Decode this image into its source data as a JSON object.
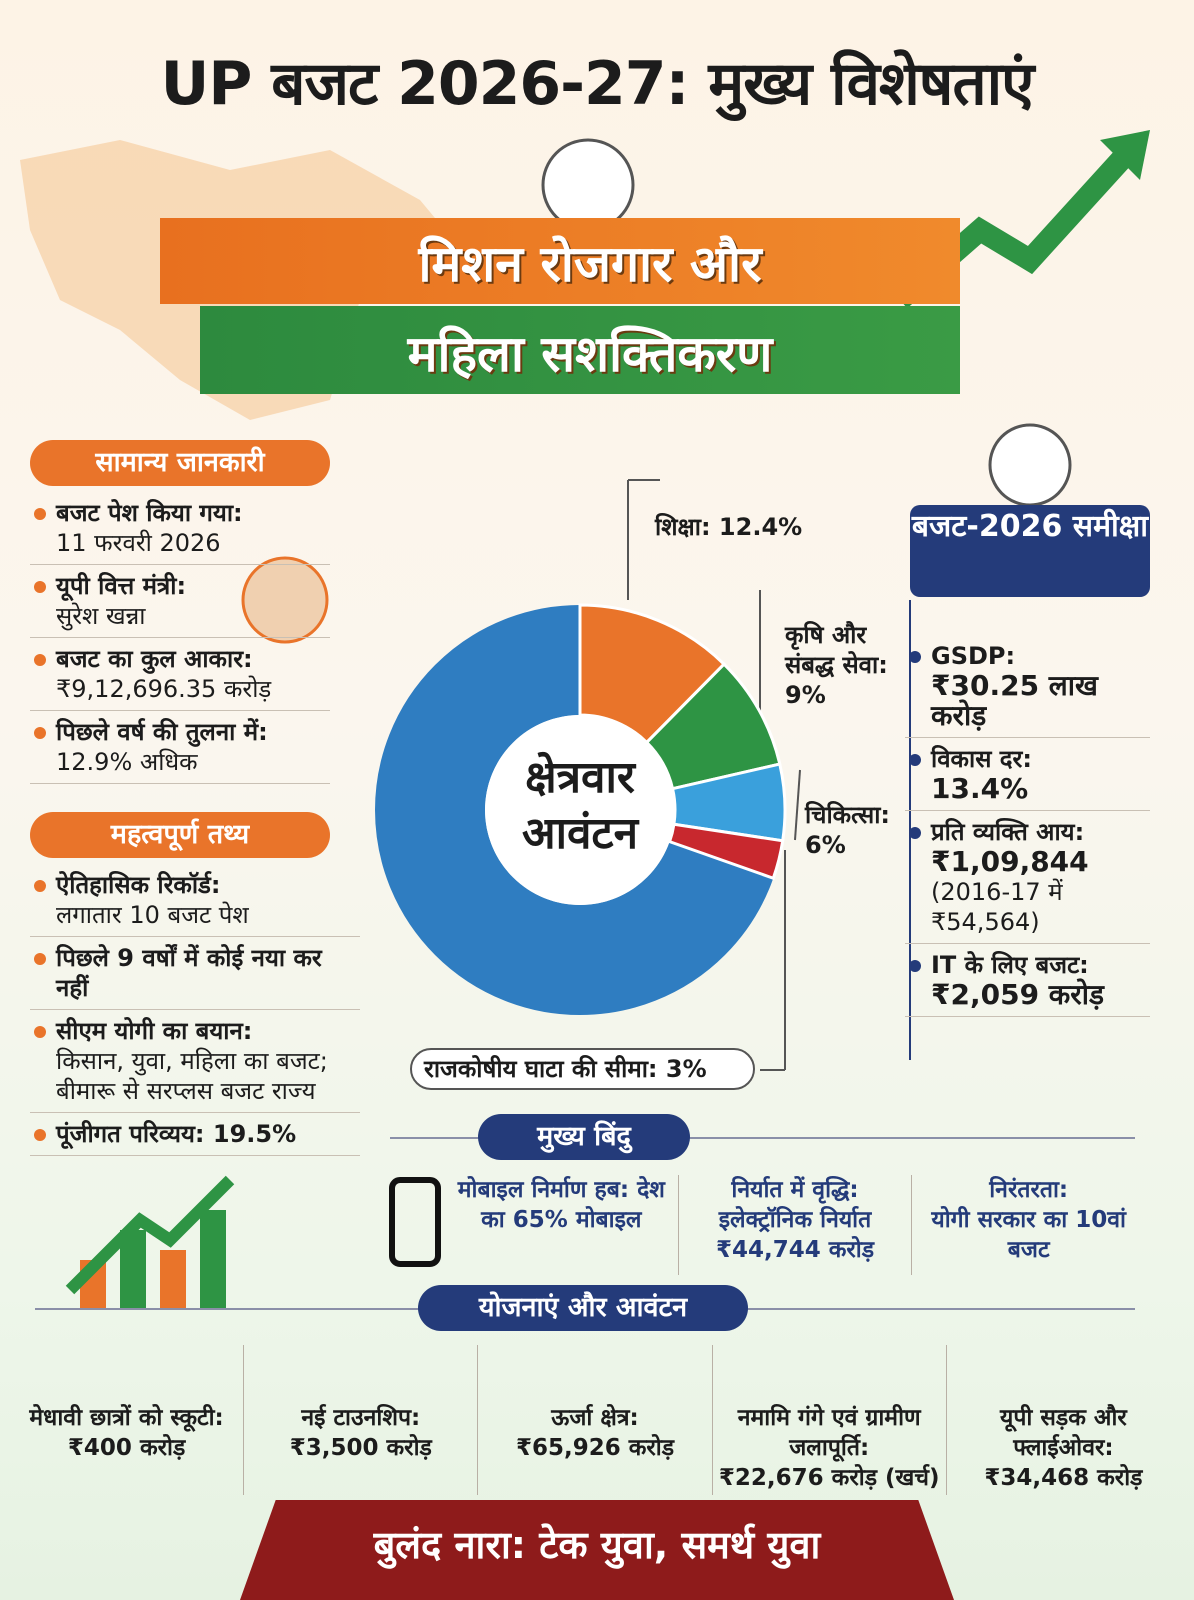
{
  "header": {
    "title": "UP बजट 2026-27: मुख्य विशेषताएं",
    "banner": [
      "मिशन रोजगार और",
      "महिला सशक्तिकरण"
    ]
  },
  "general_info": {
    "heading": "सामान्य जानकारी",
    "items": [
      [
        "बजट पेश किया गया:",
        "11 फरवरी 2026"
      ],
      [
        "यूपी वित्त मंत्री:",
        "सुरेश खन्ना"
      ],
      [
        "बजट का कुल आकार:",
        "₹9,12,696.35 करोड़"
      ],
      [
        "पिछले वर्ष की तुलना में:",
        "12.9% अधिक"
      ]
    ]
  },
  "key_facts": {
    "heading": "महत्वपूर्ण तथ्य",
    "items": [
      [
        "ऐतिहासिक रिकॉर्ड:",
        "लगातार 10 बजट पेश"
      ],
      [
        "पिछले 9 वर्षों में कोई नया कर नहीं"
      ],
      [
        "सीएम योगी का बयान:",
        "किसान, युवा, महिला का बजट;",
        "बीमारू से सरप्लस बजट राज्य"
      ],
      [
        "पूंजीगत परिव्यय: 19.5%"
      ]
    ]
  },
  "chart_data": {
    "type": "pie",
    "title": "क्षेत्रवार आवंटन",
    "categories": [
      "शिक्षा:",
      "कृषि और संबद्ध सेवा:",
      "चिकित्सा:",
      "राजकोषीय घाटा की सीमा:"
    ],
    "values": [
      12.4,
      9,
      6,
      3
    ],
    "value_labels": [
      "12.4%",
      "9%",
      "6%",
      "3%"
    ],
    "colors": [
      "#e9742a",
      "#2e9444",
      "#3aa0dc",
      "#c8282e"
    ]
  },
  "review": {
    "heading": "बजट-2026 समीक्षा",
    "items": [
      [
        "GSDP:",
        "₹30.25 लाख करोड़"
      ],
      [
        "विकास दर:",
        "13.4%"
      ],
      [
        "प्रति व्यक्ति आय:",
        "₹1,09,844",
        "(2016-17 में ₹54,564)"
      ],
      [
        "IT के लिए बजट:",
        "₹2,059 करोड़"
      ]
    ]
  },
  "highlights": {
    "heading": "मुख्य बिंदु",
    "items": [
      [
        "मोबाइल निर्माण हब: देश का 65% मोबाइल"
      ],
      [
        "निर्यात में वृद्धि:",
        "इलेक्ट्रॉनिक निर्यात ₹44,744 करोड़"
      ],
      [
        "निरंतरता:",
        "योगी सरकार का 10वां बजट"
      ]
    ]
  },
  "schemes": {
    "heading": "योजनाएं और आवंटन",
    "items": [
      [
        "मेधावी छात्रों को स्कूटी:",
        "₹400 करोड़"
      ],
      [
        "नई टाउनशिप:",
        "₹3,500 करोड़"
      ],
      [
        "ऊर्जा क्षेत्र:",
        "₹65,926 करोड़"
      ],
      [
        "नमामि गंगे एवं ग्रामीण जलापूर्ति:",
        "₹22,676 करोड़ (खर्च)"
      ],
      [
        "यूपी सड़क और फ्लाईओवर:",
        "₹34,468 करोड़"
      ]
    ]
  },
  "slogan": "बुलंद नारा: टेक युवा, समर्थ युवा"
}
